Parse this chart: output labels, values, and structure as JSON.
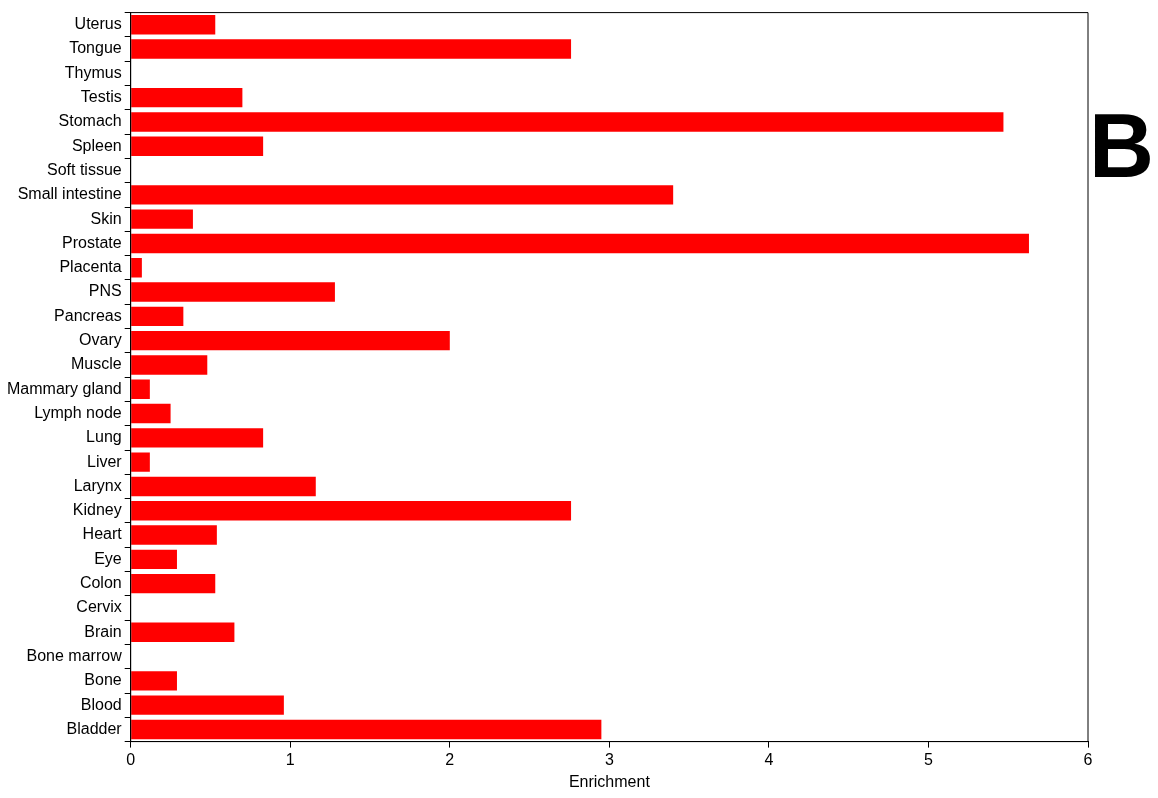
{
  "chart_data": {
    "type": "bar",
    "orientation": "horizontal",
    "xlabel": "Enrichment",
    "annotations": [
      "B"
    ],
    "categories": [
      "Uterus",
      "Tongue",
      "Thymus",
      "Testis",
      "Stomach",
      "Spleen",
      "Soft tissue",
      "Small intestine",
      "Skin",
      "Prostate",
      "Placenta",
      "PNS",
      "Pancreas",
      "Ovary",
      "Muscle",
      "Mammary gland",
      "Lymph node",
      "Lung",
      "Liver",
      "Larynx",
      "Kidney",
      "Heart",
      "Eye",
      "Colon",
      "Cervix",
      "Brain",
      "Bone marrow",
      "Bone",
      "Blood",
      "Bladder"
    ],
    "values": [
      0.53,
      2.76,
      0,
      0.7,
      5.47,
      0.83,
      0,
      3.4,
      0.39,
      5.63,
      0.07,
      1.28,
      0.33,
      2.0,
      0.48,
      0.12,
      0.25,
      0.83,
      0.12,
      1.16,
      2.76,
      0.54,
      0.29,
      0.53,
      0,
      0.65,
      0,
      0.29,
      0.96,
      2.95
    ],
    "color": "#ff0000",
    "xlim": [
      0,
      6
    ],
    "xticks": [
      0,
      1,
      2,
      3,
      4,
      5,
      6
    ],
    "grid": false,
    "legend": false
  }
}
